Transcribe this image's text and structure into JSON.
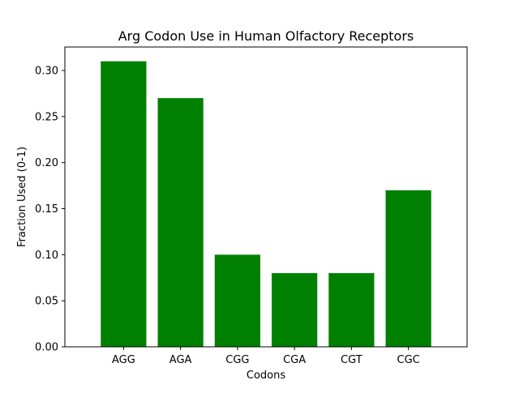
{
  "chart_data": {
    "type": "bar",
    "title": "Arg Codon Use in Human Olfactory Receptors",
    "xlabel": "Codons",
    "ylabel": "Fraction Used (0-1)",
    "categories": [
      "AGG",
      "AGA",
      "CGG",
      "CGA",
      "CGT",
      "CGC"
    ],
    "values": [
      0.31,
      0.27,
      0.1,
      0.08,
      0.08,
      0.17
    ],
    "ylim": [
      0,
      0.3255
    ],
    "yticks": [
      0.0,
      0.05,
      0.1,
      0.15,
      0.2,
      0.25,
      0.3
    ],
    "ytick_labels": [
      "0.00",
      "0.05",
      "0.10",
      "0.15",
      "0.20",
      "0.25",
      "0.30"
    ],
    "bar_color": "#008000",
    "grid": false,
    "legend": "none"
  }
}
